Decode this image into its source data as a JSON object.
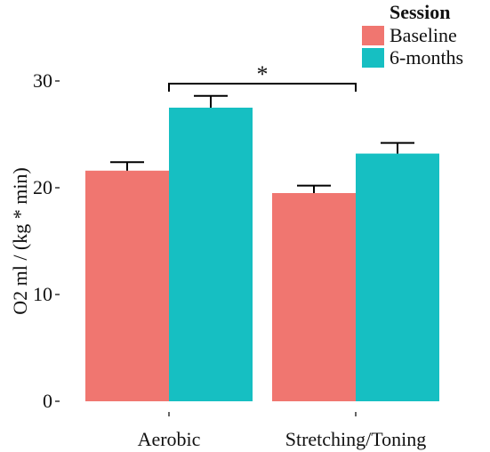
{
  "chart_data": {
    "type": "bar",
    "categories": [
      "Aerobic",
      "Stretching/Toning"
    ],
    "series": [
      {
        "name": "Baseline",
        "color": "#f07670",
        "values": [
          21.6,
          19.5
        ],
        "error": [
          0.8,
          0.7
        ]
      },
      {
        "name": "6-months",
        "color": "#16bfc2",
        "values": [
          27.5,
          23.2
        ],
        "error": [
          1.1,
          1.0
        ]
      }
    ],
    "title": "",
    "xlabel": "",
    "ylabel": "O2 ml / (kg * min)",
    "ylim": [
      0,
      30
    ],
    "yticks": [
      0,
      10,
      20,
      30
    ],
    "ytick_labels": [
      "0",
      "10",
      "20",
      "30"
    ],
    "grid": false,
    "legend": {
      "title": "Session",
      "placement": "top-right"
    },
    "annotations": [
      {
        "type": "significance",
        "label": "*",
        "from_category": "Aerobic",
        "to_category": "Stretching/Toning",
        "y": 30
      }
    ]
  }
}
